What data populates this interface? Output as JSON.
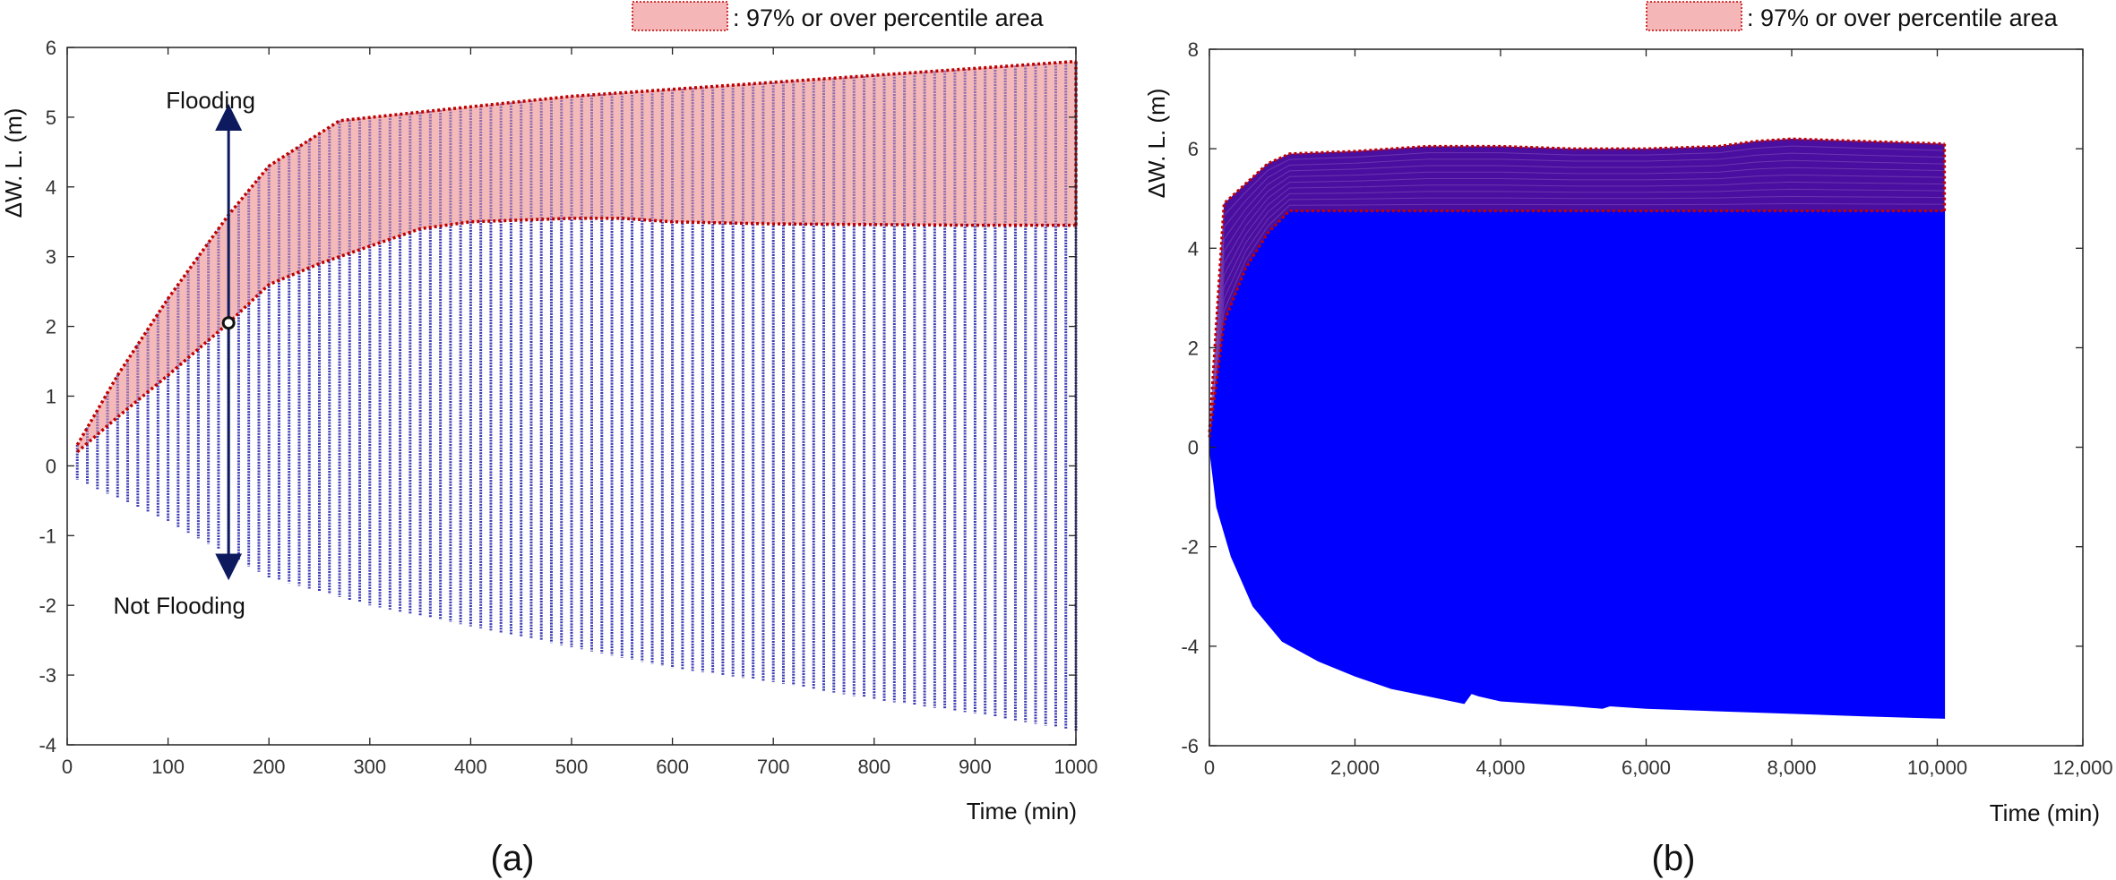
{
  "chart_data": [
    {
      "panel_label": "(a)",
      "type": "scatter",
      "xlabel": "Time (min)",
      "ylabel": "ΔW. L. (m)",
      "xlim": [
        0,
        1000
      ],
      "ylim": [
        -4,
        6
      ],
      "xticks": [
        0,
        100,
        200,
        300,
        400,
        500,
        600,
        700,
        800,
        900,
        1000
      ],
      "yticks": [
        -4,
        -3,
        -2,
        -1,
        0,
        1,
        2,
        3,
        4,
        5,
        6
      ],
      "grid": false,
      "legend": {
        "text": ": 97% or over percentile area",
        "position": "top-right"
      },
      "annotations": [
        {
          "text": "Flooding",
          "x": 160,
          "y": 5.05
        },
        {
          "text": "Not Flooding",
          "x": 160,
          "y": -1.5
        }
      ],
      "marker": {
        "x": 160,
        "y": 2.05
      },
      "series": [
        {
          "role": "simulation-points",
          "color": "#1a1aa8",
          "x_start": 10,
          "x_end": 1000,
          "x_step": 10,
          "max_curve": {
            "x": [
              10,
              50,
              100,
              160,
              200,
              270,
              400,
              500,
              600,
              700,
              800,
              900,
              1000
            ],
            "y": [
              0.3,
              1.3,
              2.4,
              3.6,
              4.3,
              4.95,
              5.15,
              5.3,
              5.4,
              5.5,
              5.6,
              5.7,
              5.8
            ]
          },
          "min_curve": {
            "x": [
              10,
              100,
              200,
              300,
              400,
              500,
              600,
              700,
              800,
              900,
              1000
            ],
            "y": [
              -0.2,
              -0.8,
              -1.6,
              -2.0,
              -2.3,
              -2.6,
              -2.9,
              -3.1,
              -3.35,
              -3.55,
              -3.8
            ]
          }
        },
        {
          "role": "percentile-area",
          "fill": "#f4b6b6",
          "edge": "#c00000",
          "upper": {
            "x": [
              10,
              50,
              100,
              160,
              200,
              270,
              400,
              500,
              600,
              700,
              800,
              900,
              1000
            ],
            "y": [
              0.3,
              1.3,
              2.4,
              3.6,
              4.3,
              4.95,
              5.15,
              5.3,
              5.4,
              5.5,
              5.6,
              5.7,
              5.8
            ]
          },
          "lower": {
            "x": [
              10,
              50,
              100,
              160,
              200,
              250,
              300,
              350,
              400,
              500,
              550,
              600,
              700,
              800,
              900,
              1000
            ],
            "y": [
              0.2,
              0.7,
              1.3,
              2.05,
              2.6,
              2.9,
              3.15,
              3.4,
              3.5,
              3.55,
              3.55,
              3.5,
              3.47,
              3.46,
              3.45,
              3.45
            ]
          }
        }
      ]
    },
    {
      "panel_label": "(b)",
      "type": "area",
      "xlabel": "Time (min)",
      "ylabel": "ΔW. L. (m)",
      "xlim": [
        0,
        12000
      ],
      "ylim": [
        -6,
        8
      ],
      "xticks": [
        0,
        2000,
        4000,
        6000,
        8000,
        10000,
        12000
      ],
      "xtick_labels": [
        "0",
        "2,000",
        "4,000",
        "6,000",
        "8,000",
        "10,000",
        "12,000"
      ],
      "yticks": [
        -6,
        -4,
        -2,
        0,
        2,
        4,
        6,
        8
      ],
      "grid": false,
      "legend": {
        "text": ": 97% or over percentile area",
        "position": "top-right"
      },
      "series": [
        {
          "role": "simulation-envelope",
          "color": "#0000ff",
          "upper": {
            "x": [
              0,
              200,
              500,
              800,
              1100,
              1200,
              10100
            ],
            "y": [
              0.2,
              2.5,
              3.6,
              4.3,
              4.75,
              4.75,
              4.75
            ]
          },
          "lower": {
            "x": [
              0,
              100,
              300,
              600,
              1000,
              1500,
              2000,
              2500,
              3000,
              3500,
              3600,
              3700,
              4000,
              5000,
              5400,
              5500,
              6000,
              7000,
              8000,
              9000,
              10100
            ],
            "y": [
              0,
              -1.2,
              -2.2,
              -3.2,
              -3.9,
              -4.3,
              -4.6,
              -4.85,
              -5.0,
              -5.15,
              -4.95,
              -5.0,
              -5.1,
              -5.2,
              -5.25,
              -5.2,
              -5.25,
              -5.3,
              -5.35,
              -5.4,
              -5.45
            ]
          }
        },
        {
          "role": "percentile-area",
          "fill": "#4a0fa0",
          "edge": "#c00000",
          "upper": {
            "x": [
              0,
              200,
              500,
              800,
              1100,
              2000,
              3000,
              4000,
              5000,
              6000,
              7000,
              7500,
              8000,
              9000,
              10100
            ],
            "y": [
              0.3,
              4.9,
              5.3,
              5.7,
              5.9,
              5.95,
              6.05,
              6.05,
              6.0,
              6.0,
              6.05,
              6.15,
              6.2,
              6.15,
              6.1
            ]
          },
          "lower": {
            "x": [
              0,
              200,
              500,
              800,
              1100,
              1200,
              10100
            ],
            "y": [
              0.2,
              2.5,
              3.6,
              4.3,
              4.75,
              4.75,
              4.75
            ]
          }
        }
      ]
    }
  ]
}
